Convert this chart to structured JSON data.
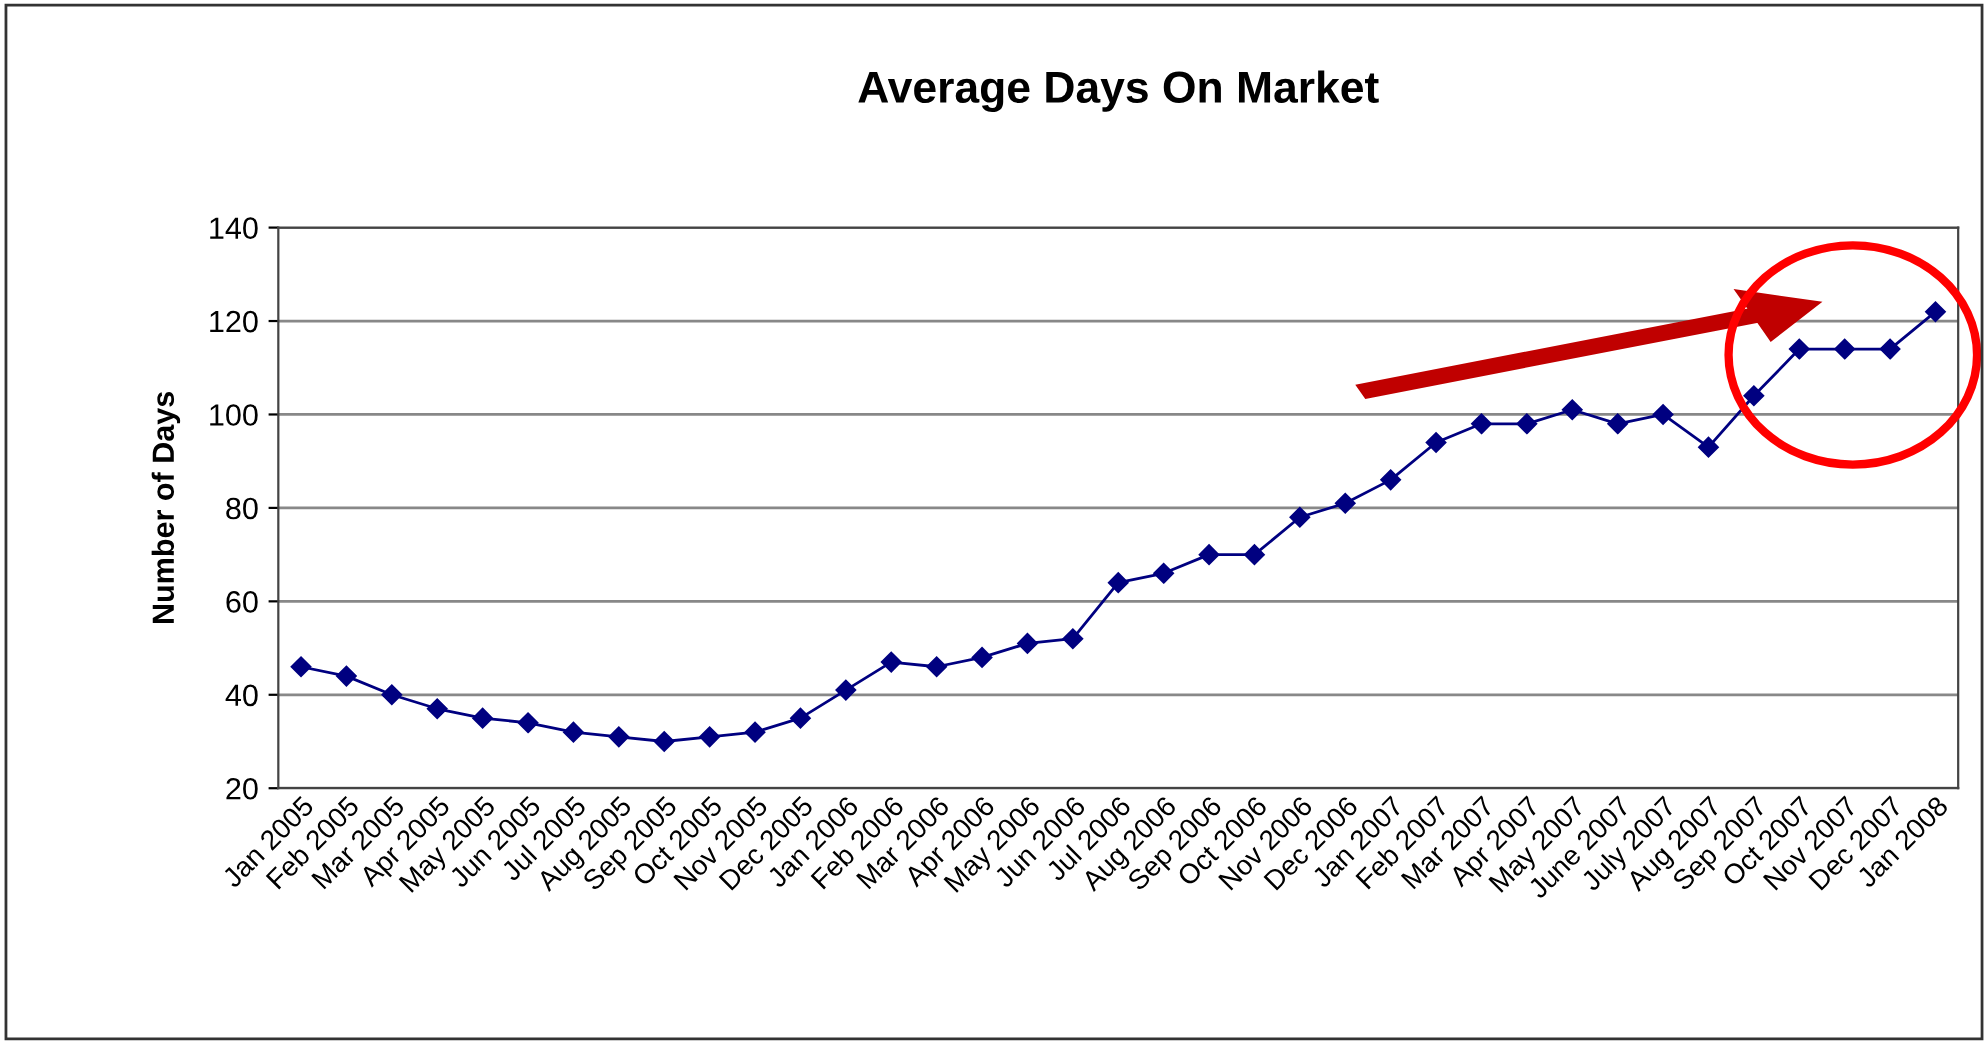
{
  "chart_data": {
    "type": "line",
    "title": "Average Days On Market",
    "ylabel": "Number of Days",
    "categories": [
      "Jan 2005",
      "Feb 2005",
      "Mar 2005",
      "Apr 2005",
      "May 2005",
      "Jun 2005",
      "Jul 2005",
      "Aug 2005",
      "Sep 2005",
      "Oct 2005",
      "Nov 2005",
      "Dec 2005",
      "Jan 2006",
      "Feb 2006",
      "Mar 2006",
      "Apr 2006",
      "May 2006",
      "Jun 2006",
      "Jul 2006",
      "Aug 2006",
      "Sep 2006",
      "Oct 2006",
      "Nov 2006",
      "Dec 2006",
      "Jan 2007",
      "Feb 2007",
      "Mar 2007",
      "Apr 2007",
      "May 2007",
      "June 2007",
      "July 2007",
      "Aug 2007",
      "Sep 2007",
      "Oct 2007",
      "Nov 2007",
      "Dec 2007",
      "Jan 2008"
    ],
    "series": [
      {
        "color": "#000080",
        "values": [
          46,
          44,
          40,
          37,
          35,
          34,
          32,
          31,
          30,
          31,
          32,
          35,
          41,
          47,
          46,
          48,
          51,
          52,
          64,
          66,
          70,
          70,
          78,
          81,
          86,
          94,
          98,
          98,
          101,
          98,
          100,
          93,
          104,
          114,
          114,
          114,
          122
        ]
      }
    ],
    "ylim": [
      20,
      140
    ],
    "yticks": [
      20,
      40,
      60,
      80,
      100,
      120,
      140
    ],
    "grid": "y",
    "marker": "diamond",
    "line_style": "solid"
  }
}
